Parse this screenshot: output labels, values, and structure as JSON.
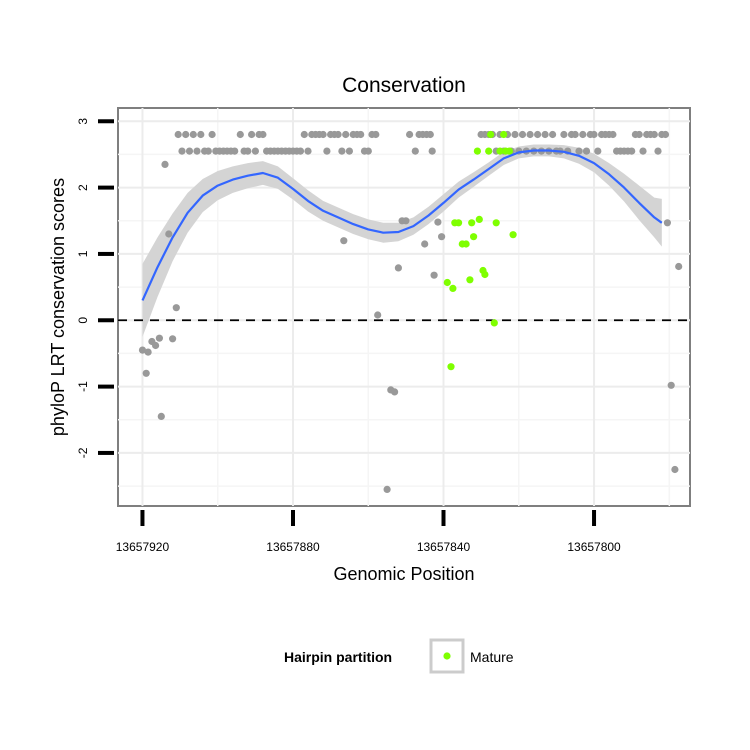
{
  "chart_data": {
    "type": "scatter",
    "title": "Conservation",
    "xlabel": "Genomic Position",
    "ylabel": "phyloP LRT conservation scores",
    "x_reversed": true,
    "xlim": [
      13657926.5,
      13657774.5
    ],
    "ylim": [
      -2.8,
      3.2
    ],
    "x_ticks": [
      13657920,
      13657880,
      13657840,
      13657800
    ],
    "x_tick_labels": [
      "13657920",
      "13657880",
      "13657840",
      "13657800"
    ],
    "y_ticks": [
      -2,
      -1,
      0,
      1,
      2,
      3
    ],
    "y_tick_labels": [
      "-2",
      "-1",
      "0",
      "1",
      "2",
      "3"
    ],
    "reference_line_y": 0,
    "legend": {
      "title": "Hairpin partition",
      "entries": [
        "Mature"
      ],
      "position": "bottom"
    },
    "colors": {
      "other": "#999999",
      "mature": "#7fff00",
      "smooth": "#3366ff",
      "band": "#d4d4d4"
    },
    "series": [
      {
        "name": "Other",
        "points": [
          [
            13657920.0,
            -0.45
          ],
          [
            13657919.0,
            -0.8
          ],
          [
            13657918.5,
            -0.48
          ],
          [
            13657917.5,
            -0.32
          ],
          [
            13657916.5,
            -0.38
          ],
          [
            13657915.5,
            -0.27
          ],
          [
            13657915.0,
            -1.45
          ],
          [
            13657914.0,
            2.35
          ],
          [
            13657913.0,
            1.3
          ],
          [
            13657912.0,
            -0.28
          ],
          [
            13657911.0,
            0.19
          ],
          [
            13657910.5,
            2.8
          ],
          [
            13657909.5,
            2.55
          ],
          [
            13657908.5,
            2.8
          ],
          [
            13657907.5,
            2.55
          ],
          [
            13657906.5,
            2.8
          ],
          [
            13657905.5,
            2.55
          ],
          [
            13657904.5,
            2.8
          ],
          [
            13657903.5,
            2.55
          ],
          [
            13657902.5,
            2.55
          ],
          [
            13657901.5,
            2.8
          ],
          [
            13657900.5,
            2.55
          ],
          [
            13657899.5,
            2.55
          ],
          [
            13657898.5,
            2.55
          ],
          [
            13657897.5,
            2.55
          ],
          [
            13657896.5,
            2.55
          ],
          [
            13657895.5,
            2.55
          ],
          [
            13657894.0,
            2.8
          ],
          [
            13657893.0,
            2.55
          ],
          [
            13657892.0,
            2.55
          ],
          [
            13657891.0,
            2.8
          ],
          [
            13657890.0,
            2.55
          ],
          [
            13657889.0,
            2.8
          ],
          [
            13657888.0,
            2.8
          ],
          [
            13657887.0,
            2.55
          ],
          [
            13657886.0,
            2.55
          ],
          [
            13657885.0,
            2.55
          ],
          [
            13657884.0,
            2.55
          ],
          [
            13657883.0,
            2.55
          ],
          [
            13657882.0,
            2.55
          ],
          [
            13657881.0,
            2.55
          ],
          [
            13657880.0,
            2.55
          ],
          [
            13657879.0,
            2.55
          ],
          [
            13657878.0,
            2.55
          ],
          [
            13657877.0,
            2.8
          ],
          [
            13657876.0,
            2.55
          ],
          [
            13657875.0,
            2.8
          ],
          [
            13657874.0,
            2.8
          ],
          [
            13657873.0,
            2.8
          ],
          [
            13657872.0,
            2.8
          ],
          [
            13657871.0,
            2.55
          ],
          [
            13657870.0,
            2.8
          ],
          [
            13657869.0,
            2.8
          ],
          [
            13657868.0,
            2.8
          ],
          [
            13657867.0,
            2.55
          ],
          [
            13657866.5,
            1.2
          ],
          [
            13657866.0,
            2.8
          ],
          [
            13657865.0,
            2.55
          ],
          [
            13657864.0,
            2.8
          ],
          [
            13657863.0,
            2.8
          ],
          [
            13657862.0,
            2.8
          ],
          [
            13657861.0,
            2.55
          ],
          [
            13657860.0,
            2.55
          ],
          [
            13657859.0,
            2.8
          ],
          [
            13657858.0,
            2.8
          ],
          [
            13657857.5,
            0.08
          ],
          [
            13657855.0,
            -2.55
          ],
          [
            13657854.0,
            -1.05
          ],
          [
            13657853.0,
            -1.08
          ],
          [
            13657852.0,
            0.79
          ],
          [
            13657851.0,
            1.5
          ],
          [
            13657850.0,
            1.5
          ],
          [
            13657849.0,
            2.8
          ],
          [
            13657847.5,
            2.55
          ],
          [
            13657846.5,
            2.8
          ],
          [
            13657845.5,
            2.8
          ],
          [
            13657845.0,
            1.15
          ],
          [
            13657844.5,
            2.8
          ],
          [
            13657843.5,
            2.8
          ],
          [
            13657843.0,
            2.55
          ],
          [
            13657842.5,
            0.68
          ],
          [
            13657841.5,
            1.48
          ],
          [
            13657840.5,
            1.26
          ],
          [
            13657830.0,
            2.8
          ],
          [
            13657829.0,
            2.8
          ],
          [
            13657828.0,
            2.8
          ],
          [
            13657827.0,
            2.8
          ],
          [
            13657826.0,
            2.55
          ],
          [
            13657825.0,
            2.8
          ],
          [
            13657824.0,
            2.55
          ],
          [
            13657823.0,
            2.8
          ],
          [
            13657822.0,
            2.55
          ],
          [
            13657821.0,
            2.8
          ],
          [
            13657820.0,
            2.55
          ],
          [
            13657819.0,
            2.8
          ],
          [
            13657818.0,
            2.55
          ],
          [
            13657817.0,
            2.8
          ],
          [
            13657816.0,
            2.55
          ],
          [
            13657815.0,
            2.8
          ],
          [
            13657814.0,
            2.55
          ],
          [
            13657813.0,
            2.8
          ],
          [
            13657812.0,
            2.55
          ],
          [
            13657811.0,
            2.8
          ],
          [
            13657810.0,
            2.55
          ],
          [
            13657809.0,
            2.55
          ],
          [
            13657808.0,
            2.8
          ],
          [
            13657807.0,
            2.55
          ],
          [
            13657806.0,
            2.8
          ],
          [
            13657805.0,
            2.8
          ],
          [
            13657804.0,
            2.55
          ],
          [
            13657803.0,
            2.8
          ],
          [
            13657802.0,
            2.55
          ],
          [
            13657801.0,
            2.8
          ],
          [
            13657800.0,
            2.8
          ],
          [
            13657799.0,
            2.55
          ],
          [
            13657798.0,
            2.8
          ],
          [
            13657797.0,
            2.8
          ],
          [
            13657796.0,
            2.8
          ],
          [
            13657795.0,
            2.8
          ],
          [
            13657794.0,
            2.55
          ],
          [
            13657793.0,
            2.55
          ],
          [
            13657792.0,
            2.55
          ],
          [
            13657791.0,
            2.55
          ],
          [
            13657790.0,
            2.55
          ],
          [
            13657789.0,
            2.8
          ],
          [
            13657788.0,
            2.8
          ],
          [
            13657787.0,
            2.55
          ],
          [
            13657786.0,
            2.8
          ],
          [
            13657785.0,
            2.8
          ],
          [
            13657784.0,
            2.8
          ],
          [
            13657783.0,
            2.55
          ],
          [
            13657782.0,
            2.8
          ],
          [
            13657781.0,
            2.8
          ],
          [
            13657780.5,
            1.47
          ],
          [
            13657779.5,
            -0.98
          ],
          [
            13657778.5,
            -2.25
          ],
          [
            13657777.5,
            0.81
          ]
        ]
      },
      {
        "name": "Mature",
        "points": [
          [
            13657839.0,
            0.57
          ],
          [
            13657838.0,
            -0.7
          ],
          [
            13657837.5,
            0.48
          ],
          [
            13657837.0,
            1.47
          ],
          [
            13657836.0,
            1.47
          ],
          [
            13657835.0,
            1.15
          ],
          [
            13657834.0,
            1.15
          ],
          [
            13657833.0,
            0.61
          ],
          [
            13657832.5,
            1.47
          ],
          [
            13657832.0,
            1.26
          ],
          [
            13657831.0,
            2.55
          ],
          [
            13657830.5,
            1.52
          ],
          [
            13657829.5,
            0.75
          ],
          [
            13657829.0,
            0.69
          ],
          [
            13657828.0,
            2.55
          ],
          [
            13657827.5,
            2.8
          ],
          [
            13657826.5,
            -0.04
          ],
          [
            13657826.0,
            1.47
          ],
          [
            13657825.0,
            2.55
          ],
          [
            13657824.0,
            2.8
          ],
          [
            13657823.5,
            2.55
          ],
          [
            13657822.5,
            2.55
          ],
          [
            13657821.5,
            1.29
          ]
        ]
      }
    ],
    "smooth": {
      "method": "loess",
      "points": [
        [
          13657920,
          0.3
        ],
        [
          13657916,
          0.8
        ],
        [
          13657912,
          1.25
        ],
        [
          13657908,
          1.62
        ],
        [
          13657904,
          1.88
        ],
        [
          13657900,
          2.03
        ],
        [
          13657896,
          2.12
        ],
        [
          13657892,
          2.18
        ],
        [
          13657888,
          2.22
        ],
        [
          13657884,
          2.15
        ],
        [
          13657880,
          1.98
        ],
        [
          13657876,
          1.8
        ],
        [
          13657872,
          1.65
        ],
        [
          13657868,
          1.55
        ],
        [
          13657864,
          1.45
        ],
        [
          13657860,
          1.37
        ],
        [
          13657856,
          1.32
        ],
        [
          13657852,
          1.33
        ],
        [
          13657848,
          1.42
        ],
        [
          13657844,
          1.58
        ],
        [
          13657840,
          1.77
        ],
        [
          13657836,
          1.97
        ],
        [
          13657832,
          2.12
        ],
        [
          13657828,
          2.28
        ],
        [
          13657824,
          2.44
        ],
        [
          13657820,
          2.53
        ],
        [
          13657816,
          2.56
        ],
        [
          13657812,
          2.56
        ],
        [
          13657808,
          2.54
        ],
        [
          13657804,
          2.48
        ],
        [
          13657800,
          2.37
        ],
        [
          13657796,
          2.2
        ],
        [
          13657792,
          2.0
        ],
        [
          13657788,
          1.77
        ],
        [
          13657784,
          1.55
        ],
        [
          13657782,
          1.47
        ]
      ],
      "band_half_width": [
        0.55,
        0.45,
        0.36,
        0.3,
        0.25,
        0.22,
        0.2,
        0.19,
        0.18,
        0.17,
        0.16,
        0.16,
        0.15,
        0.15,
        0.15,
        0.15,
        0.15,
        0.14,
        0.13,
        0.13,
        0.13,
        0.12,
        0.11,
        0.1,
        0.1,
        0.09,
        0.09,
        0.09,
        0.1,
        0.12,
        0.14,
        0.17,
        0.21,
        0.26,
        0.3,
        0.36
      ]
    }
  }
}
